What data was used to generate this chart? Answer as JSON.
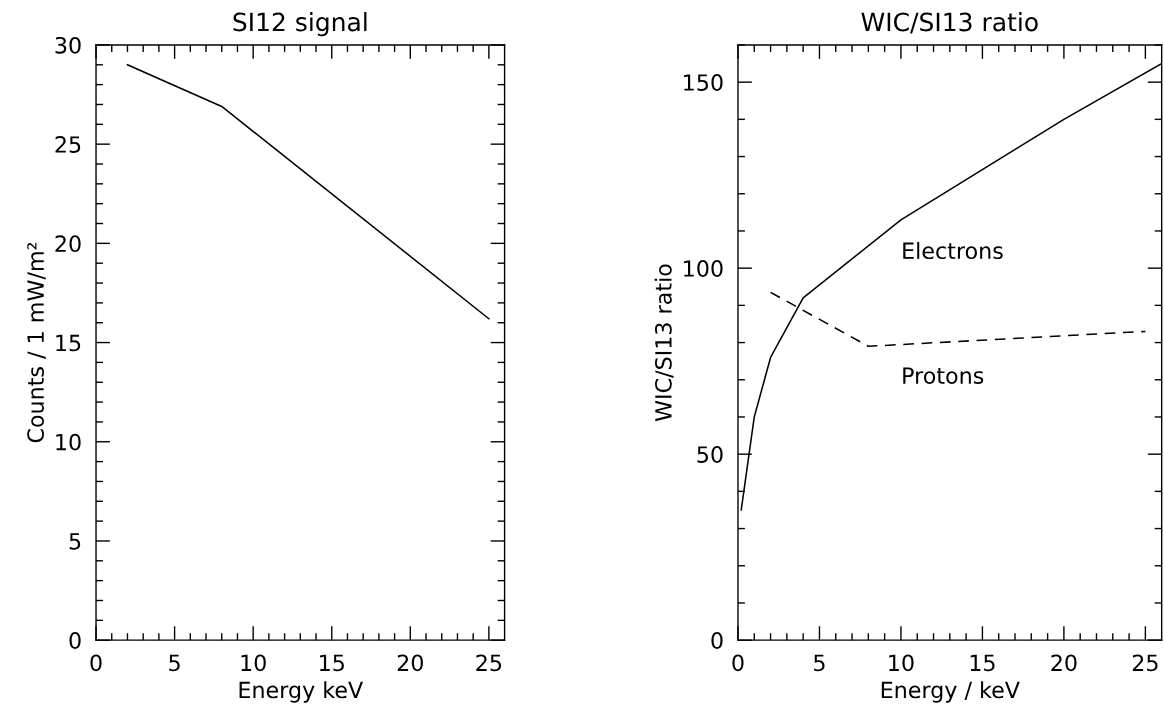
{
  "chart_data": [
    {
      "type": "line",
      "title": "SI12 signal",
      "xlabel": "Energy keV",
      "ylabel": "Counts / 1 mW/m²",
      "xlim": [
        0,
        26
      ],
      "ylim": [
        0,
        30
      ],
      "xticks": [
        0,
        {
          "value": 1,
          "label": null
        },
        {
          "value": 2,
          "label": null
        },
        {
          "value": 3,
          "label": null
        },
        {
          "value": 4,
          "label": null
        },
        5,
        {
          "value": 6,
          "label": null
        },
        {
          "value": 7,
          "label": null
        },
        {
          "value": 8,
          "label": null
        },
        {
          "value": 9,
          "label": null
        },
        10,
        {
          "value": 11,
          "label": null
        },
        {
          "value": 12,
          "label": null
        },
        {
          "value": 13,
          "label": null
        },
        {
          "value": 14,
          "label": null
        },
        15,
        {
          "value": 16,
          "label": null
        },
        {
          "value": 17,
          "label": null
        },
        {
          "value": 18,
          "label": null
        },
        {
          "value": 19,
          "label": null
        },
        20,
        {
          "value": 21,
          "label": null
        },
        {
          "value": 22,
          "label": null
        },
        {
          "value": 23,
          "label": null
        },
        {
          "value": 24,
          "label": null
        },
        25
      ],
      "yticks": [
        0,
        {
          "value": 1,
          "label": null
        },
        {
          "value": 2,
          "label": null
        },
        {
          "value": 3,
          "label": null
        },
        {
          "value": 4,
          "label": null
        },
        5,
        {
          "value": 6,
          "label": null
        },
        {
          "value": 7,
          "label": null
        },
        {
          "value": 8,
          "label": null
        },
        {
          "value": 9,
          "label": null
        },
        10,
        {
          "value": 11,
          "label": null
        },
        {
          "value": 12,
          "label": null
        },
        {
          "value": 13,
          "label": null
        },
        {
          "value": 14,
          "label": null
        },
        15,
        {
          "value": 16,
          "label": null
        },
        {
          "value": 17,
          "label": null
        },
        {
          "value": 18,
          "label": null
        },
        {
          "value": 19,
          "label": null
        },
        20,
        {
          "value": 21,
          "label": null
        },
        {
          "value": 22,
          "label": null
        },
        {
          "value": 23,
          "label": null
        },
        {
          "value": 24,
          "label": null
        },
        25,
        {
          "value": 26,
          "label": null
        },
        {
          "value": 27,
          "label": null
        },
        {
          "value": 28,
          "label": null
        },
        {
          "value": 29,
          "label": null
        },
        30
      ],
      "series": [
        {
          "color": "#000000",
          "line_style": "solid",
          "x": [
            2,
            8,
            25
          ],
          "values": [
            29.0,
            26.9,
            16.2
          ]
        }
      ]
    },
    {
      "type": "line",
      "title": "WIC/SI13 ratio",
      "xlabel": "Energy / keV",
      "ylabel": "WIC/SI13 ratio",
      "xlim": [
        0,
        26
      ],
      "ylim": [
        0,
        160
      ],
      "xticks": [
        0,
        {
          "value": 1,
          "label": null
        },
        {
          "value": 2,
          "label": null
        },
        {
          "value": 3,
          "label": null
        },
        {
          "value": 4,
          "label": null
        },
        5,
        {
          "value": 6,
          "label": null
        },
        {
          "value": 7,
          "label": null
        },
        {
          "value": 8,
          "label": null
        },
        {
          "value": 9,
          "label": null
        },
        10,
        {
          "value": 11,
          "label": null
        },
        {
          "value": 12,
          "label": null
        },
        {
          "value": 13,
          "label": null
        },
        {
          "value": 14,
          "label": null
        },
        15,
        {
          "value": 16,
          "label": null
        },
        {
          "value": 17,
          "label": null
        },
        {
          "value": 18,
          "label": null
        },
        {
          "value": 19,
          "label": null
        },
        20,
        {
          "value": 21,
          "label": null
        },
        {
          "value": 22,
          "label": null
        },
        {
          "value": 23,
          "label": null
        },
        {
          "value": 24,
          "label": null
        },
        25
      ],
      "yticks": [
        0,
        {
          "value": 10,
          "label": null
        },
        {
          "value": 20,
          "label": null
        },
        {
          "value": 30,
          "label": null
        },
        {
          "value": 40,
          "label": null
        },
        50,
        {
          "value": 60,
          "label": null
        },
        {
          "value": 70,
          "label": null
        },
        {
          "value": 80,
          "label": null
        },
        {
          "value": 90,
          "label": null
        },
        100,
        {
          "value": 110,
          "label": null
        },
        {
          "value": 120,
          "label": null
        },
        {
          "value": 130,
          "label": null
        },
        {
          "value": 140,
          "label": null
        },
        150,
        {
          "value": 160,
          "label": null
        }
      ],
      "series": [
        {
          "name": "Electrons",
          "color": "#000000",
          "line_style": "solid",
          "x": [
            0.2,
            1,
            2,
            4,
            10,
            20,
            26
          ],
          "values": [
            35,
            60,
            76,
            92,
            113,
            140,
            155
          ]
        },
        {
          "name": "Protons",
          "color": "#000000",
          "line_style": "dashed",
          "x": [
            2,
            8,
            25
          ],
          "values": [
            93.5,
            79,
            83
          ]
        }
      ]
    }
  ]
}
